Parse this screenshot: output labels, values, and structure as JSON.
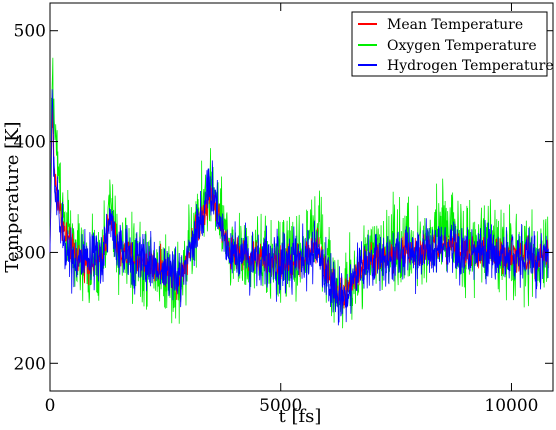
{
  "chart_data": {
    "type": "line",
    "title": "",
    "xlabel": "t [fs]",
    "ylabel": "Temperature [K]",
    "xlim": [
      0,
      10900
    ],
    "ylim": [
      175,
      525
    ],
    "xticks": [
      0,
      5000,
      10000
    ],
    "yticks": [
      200,
      300,
      400,
      500
    ],
    "legend_position": "top-right",
    "grid": false,
    "series": [
      {
        "name": "Mean Temperature",
        "color": "#ff0000",
        "noise": 22,
        "x": [
          0,
          50,
          100,
          200,
          300,
          500,
          800,
          1100,
          1300,
          1500,
          2000,
          2500,
          2800,
          3000,
          3300,
          3500,
          3800,
          4000,
          4500,
          5000,
          5500,
          5800,
          6000,
          6200,
          6400,
          6800,
          7500,
          8000,
          8500,
          9000,
          9500,
          10000,
          10500,
          10800
        ],
        "y": [
          300,
          430,
          370,
          340,
          320,
          300,
          290,
          292,
          330,
          300,
          292,
          285,
          275,
          300,
          335,
          355,
          310,
          300,
          295,
          290,
          295,
          305,
          285,
          265,
          265,
          290,
          300,
          300,
          305,
          300,
          300,
          298,
          295,
          300
        ]
      },
      {
        "name": "Oxygen Temperature",
        "color": "#00ee00",
        "noise": 55,
        "x": [
          0,
          50,
          100,
          200,
          300,
          500,
          800,
          1100,
          1300,
          1500,
          2000,
          2500,
          2800,
          3000,
          3300,
          3500,
          3800,
          4000,
          4500,
          5000,
          5500,
          5800,
          6000,
          6200,
          6400,
          6800,
          7500,
          8000,
          8500,
          9000,
          9500,
          10000,
          10500,
          10800
        ],
        "y": [
          300,
          470,
          410,
          370,
          330,
          300,
          285,
          290,
          340,
          300,
          290,
          280,
          270,
          300,
          340,
          360,
          310,
          300,
          295,
          290,
          300,
          330,
          290,
          265,
          265,
          290,
          310,
          300,
          330,
          300,
          310,
          300,
          290,
          300
        ]
      },
      {
        "name": "Hydrogen Temperature",
        "color": "#0000ff",
        "noise": 40,
        "x": [
          0,
          50,
          100,
          200,
          300,
          500,
          800,
          1100,
          1300,
          1500,
          2000,
          2500,
          2800,
          3000,
          3300,
          3500,
          3800,
          4000,
          4500,
          5000,
          5500,
          5800,
          6000,
          6200,
          6400,
          6800,
          7500,
          8000,
          8500,
          9000,
          9500,
          10000,
          10500,
          10800
        ],
        "y": [
          300,
          440,
          360,
          330,
          310,
          295,
          290,
          292,
          330,
          300,
          292,
          285,
          275,
          300,
          335,
          360,
          310,
          300,
          295,
          290,
          293,
          300,
          280,
          260,
          262,
          290,
          298,
          300,
          300,
          298,
          298,
          296,
          295,
          298
        ]
      }
    ]
  }
}
